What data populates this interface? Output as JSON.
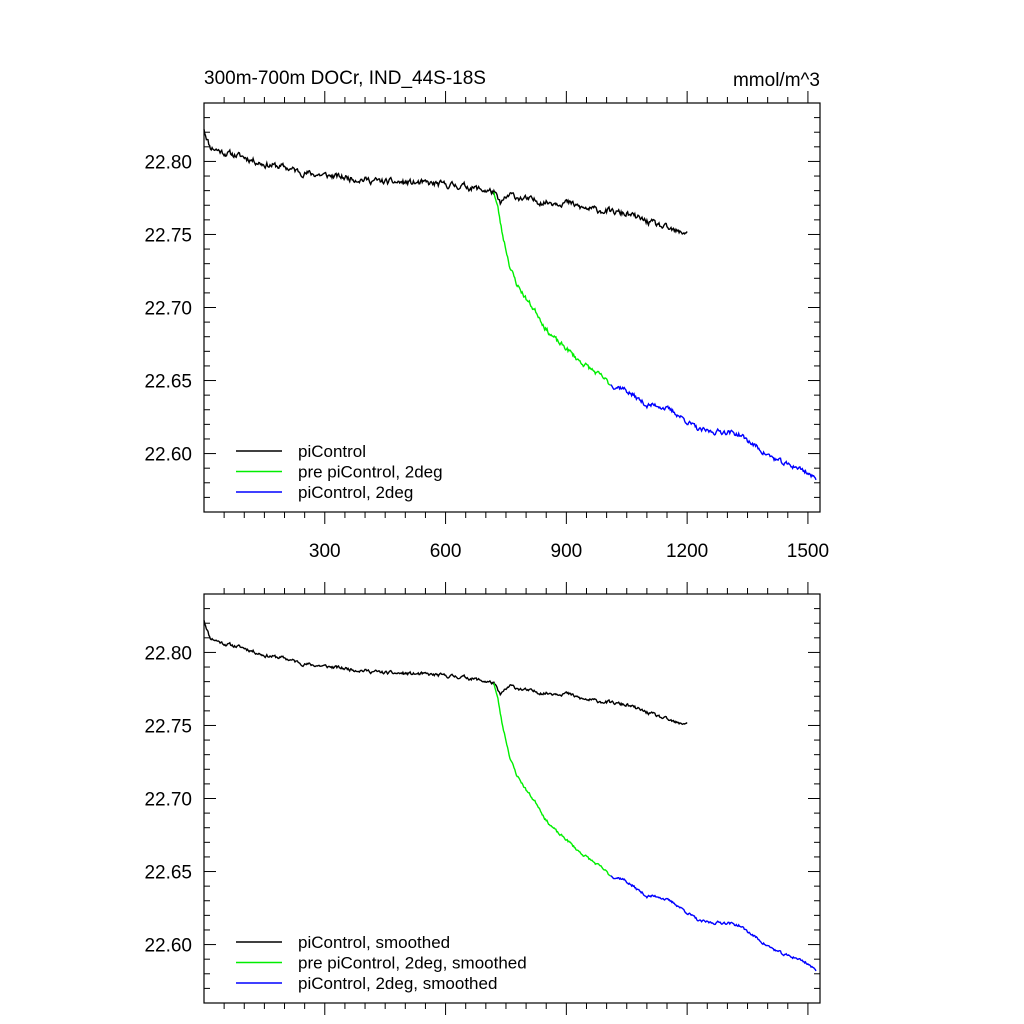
{
  "chart_data": [
    {
      "type": "line",
      "title": "300m-700m DOCr, IND_44S-18S",
      "units": "mmol/m^3",
      "xlim": [
        0,
        1530
      ],
      "ylim": [
        22.56,
        22.84
      ],
      "xticks": [
        300,
        600,
        900,
        1200,
        1500
      ],
      "xtick_labels": [
        "300",
        "600",
        "900",
        "1200",
        "1500"
      ],
      "yticks": [
        22.6,
        22.65,
        22.7,
        22.75,
        22.8
      ],
      "ytick_labels": [
        "22.60",
        "22.65",
        "22.70",
        "22.75",
        "22.80"
      ],
      "legend_location": "bottom-left",
      "series": [
        {
          "name": "piControl",
          "color": "#000000",
          "noise": 0.0022,
          "seed": 11,
          "points": [
            [
              0,
              22.822
            ],
            [
              15,
              22.81
            ],
            [
              50,
              22.806
            ],
            [
              100,
              22.803
            ],
            [
              150,
              22.798
            ],
            [
              200,
              22.796
            ],
            [
              250,
              22.792
            ],
            [
              350,
              22.789
            ],
            [
              450,
              22.786
            ],
            [
              550,
              22.785
            ],
            [
              650,
              22.783
            ],
            [
              720,
              22.779
            ],
            [
              735,
              22.771
            ],
            [
              760,
              22.777
            ],
            [
              800,
              22.774
            ],
            [
              850,
              22.772
            ],
            [
              900,
              22.772
            ],
            [
              940,
              22.768
            ],
            [
              1000,
              22.766
            ],
            [
              1050,
              22.764
            ],
            [
              1100,
              22.759
            ],
            [
              1150,
              22.754
            ],
            [
              1180,
              22.751
            ],
            [
              1200,
              22.752
            ]
          ]
        },
        {
          "name": "pre piControl, 2deg",
          "color": "#00ee00",
          "noise": 0.0018,
          "seed": 23,
          "points": [
            [
              720,
              22.779
            ],
            [
              730,
              22.768
            ],
            [
              740,
              22.752
            ],
            [
              750,
              22.74
            ],
            [
              760,
              22.728
            ],
            [
              775,
              22.717
            ],
            [
              800,
              22.706
            ],
            [
              830,
              22.695
            ],
            [
              850,
              22.685
            ],
            [
              880,
              22.676
            ],
            [
              900,
              22.672
            ],
            [
              930,
              22.664
            ],
            [
              960,
              22.658
            ],
            [
              990,
              22.652
            ],
            [
              1010,
              22.647
            ]
          ]
        },
        {
          "name": "piControl, 2deg",
          "color": "#0000ff",
          "noise": 0.0018,
          "seed": 37,
          "points": [
            [
              1010,
              22.647
            ],
            [
              1040,
              22.645
            ],
            [
              1070,
              22.639
            ],
            [
              1100,
              22.633
            ],
            [
              1130,
              22.633
            ],
            [
              1170,
              22.628
            ],
            [
              1200,
              22.622
            ],
            [
              1230,
              22.616
            ],
            [
              1260,
              22.615
            ],
            [
              1300,
              22.615
            ],
            [
              1330,
              22.613
            ],
            [
              1360,
              22.607
            ],
            [
              1400,
              22.599
            ],
            [
              1440,
              22.593
            ],
            [
              1470,
              22.591
            ],
            [
              1500,
              22.587
            ],
            [
              1520,
              22.582
            ]
          ]
        }
      ]
    },
    {
      "type": "line",
      "title": "",
      "units": "",
      "xlim": [
        0,
        1530
      ],
      "ylim": [
        22.56,
        22.84
      ],
      "xticks": [
        300,
        600,
        900,
        1200,
        1500
      ],
      "xtick_labels": [],
      "yticks": [
        22.6,
        22.65,
        22.7,
        22.75,
        22.8
      ],
      "ytick_labels": [
        "22.60",
        "22.65",
        "22.70",
        "22.75",
        "22.80"
      ],
      "legend_location": "bottom-left",
      "series": [
        {
          "name": "piControl, smoothed",
          "color": "#000000",
          "noise": 0.0012,
          "seed": 11,
          "points": [
            [
              0,
              22.822
            ],
            [
              15,
              22.81
            ],
            [
              50,
              22.806
            ],
            [
              100,
              22.803
            ],
            [
              150,
              22.798
            ],
            [
              200,
              22.796
            ],
            [
              250,
              22.792
            ],
            [
              350,
              22.789
            ],
            [
              450,
              22.786
            ],
            [
              550,
              22.785
            ],
            [
              650,
              22.783
            ],
            [
              720,
              22.779
            ],
            [
              735,
              22.771
            ],
            [
              760,
              22.777
            ],
            [
              800,
              22.774
            ],
            [
              850,
              22.772
            ],
            [
              900,
              22.772
            ],
            [
              940,
              22.768
            ],
            [
              1000,
              22.766
            ],
            [
              1050,
              22.764
            ],
            [
              1100,
              22.759
            ],
            [
              1150,
              22.754
            ],
            [
              1180,
              22.751
            ],
            [
              1200,
              22.752
            ]
          ]
        },
        {
          "name": "pre piControl, 2deg, smoothed",
          "color": "#00ee00",
          "noise": 0.001,
          "seed": 23,
          "points": [
            [
              720,
              22.779
            ],
            [
              730,
              22.768
            ],
            [
              740,
              22.752
            ],
            [
              750,
              22.74
            ],
            [
              760,
              22.728
            ],
            [
              775,
              22.717
            ],
            [
              800,
              22.706
            ],
            [
              830,
              22.695
            ],
            [
              850,
              22.685
            ],
            [
              880,
              22.676
            ],
            [
              900,
              22.672
            ],
            [
              930,
              22.664
            ],
            [
              960,
              22.658
            ],
            [
              990,
              22.652
            ],
            [
              1010,
              22.647
            ]
          ]
        },
        {
          "name": "piControl, 2deg, smoothed",
          "color": "#0000ff",
          "noise": 0.001,
          "seed": 37,
          "points": [
            [
              1010,
              22.647
            ],
            [
              1040,
              22.645
            ],
            [
              1070,
              22.639
            ],
            [
              1100,
              22.633
            ],
            [
              1130,
              22.633
            ],
            [
              1170,
              22.628
            ],
            [
              1200,
              22.622
            ],
            [
              1230,
              22.616
            ],
            [
              1260,
              22.615
            ],
            [
              1300,
              22.615
            ],
            [
              1330,
              22.613
            ],
            [
              1360,
              22.607
            ],
            [
              1400,
              22.599
            ],
            [
              1440,
              22.593
            ],
            [
              1470,
              22.591
            ],
            [
              1500,
              22.587
            ],
            [
              1520,
              22.582
            ]
          ]
        }
      ]
    }
  ]
}
